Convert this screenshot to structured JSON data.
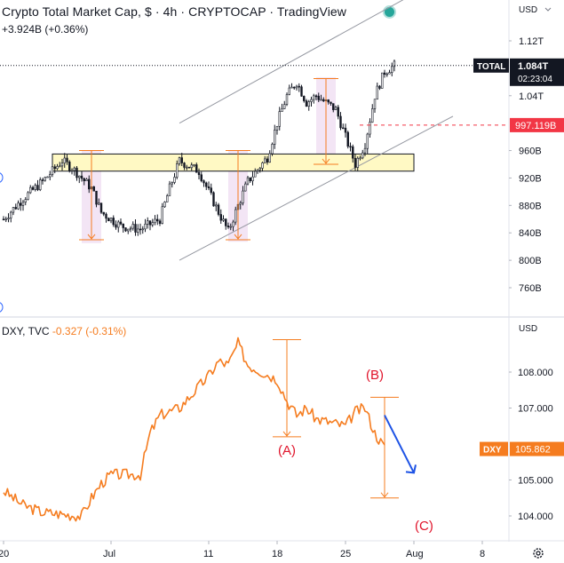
{
  "header": {
    "title": "Crypto Total Market Cap, $ · 4h · CRYPTOCAP · TradingView",
    "change": "+3.924B (+0.36%)"
  },
  "colors": {
    "candle": "#131722",
    "channel": "#9598a1",
    "zone_fill": "#fff9c4",
    "zone_border": "#131722",
    "highlight": "#f3e5f5",
    "arrow_orange": "#f57c1f",
    "dxy_line": "#f57c1f",
    "red_level": "#f23645",
    "wave_label": "#e0142b",
    "projection_arrow": "#1e53e5",
    "live": "#26a69a"
  },
  "icons": [
    "live-status-icon",
    "settings-gear-icon",
    "scale-dropdown-icon"
  ],
  "price_axis": {
    "unit_label": "USD",
    "ticks": [
      "1.12T",
      "1.04T",
      "960B",
      "920B",
      "880B",
      "840B",
      "800B",
      "760B"
    ],
    "tags": [
      {
        "label": "TOTAL",
        "value": "1.084T",
        "countdown": "02:23:04",
        "style": "dark"
      },
      {
        "label": "",
        "value": "997.119B",
        "countdown": "",
        "style": "red"
      }
    ]
  },
  "dxy_axis": {
    "unit_label": "USD",
    "ticks": [
      "108.000",
      "107.000",
      "105.000",
      "104.000"
    ],
    "tag": {
      "label": "DXY",
      "value": "105.862"
    }
  },
  "time_axis": {
    "ticks": [
      "20",
      "Jul",
      "11",
      "18",
      "25",
      "Aug",
      "8"
    ]
  },
  "dxy_header": {
    "symbol": "DXY, TVC",
    "change": "-0.327 (-0.31%)"
  },
  "chart_data": [
    {
      "type": "candlestick",
      "title": "Crypto Total Market Cap, $ · 4h · CRYPTOCAP · TradingView",
      "xlabel": "",
      "ylabel": "",
      "x_range": [
        "2022-06-20",
        "2022-08-08"
      ],
      "ylim": [
        730,
        1140
      ],
      "y_ticks": [
        1120,
        1040,
        960,
        920,
        880,
        840,
        800,
        760
      ],
      "close_path": [
        [
          "2022-06-20",
          860
        ],
        [
          "2022-06-22",
          890
        ],
        [
          "2022-06-24",
          915
        ],
        [
          "2022-06-26",
          945
        ],
        [
          "2022-06-27",
          935
        ],
        [
          "2022-06-29",
          905
        ],
        [
          "2022-06-30",
          870
        ],
        [
          "2022-07-02",
          850
        ],
        [
          "2022-07-04",
          845
        ],
        [
          "2022-07-06",
          860
        ],
        [
          "2022-07-07",
          905
        ],
        [
          "2022-07-08",
          945
        ],
        [
          "2022-07-10",
          930
        ],
        [
          "2022-07-11",
          900
        ],
        [
          "2022-07-12",
          870
        ],
        [
          "2022-07-13",
          842
        ],
        [
          "2022-07-14",
          880
        ],
        [
          "2022-07-15",
          915
        ],
        [
          "2022-07-17",
          950
        ],
        [
          "2022-07-18",
          1000
        ],
        [
          "2022-07-19",
          1040
        ],
        [
          "2022-07-20",
          1060
        ],
        [
          "2022-07-21",
          1030
        ],
        [
          "2022-07-22",
          1040
        ],
        [
          "2022-07-24",
          1020
        ],
        [
          "2022-07-25",
          980
        ],
        [
          "2022-07-26",
          940
        ],
        [
          "2022-07-27",
          970
        ],
        [
          "2022-07-28",
          1040
        ],
        [
          "2022-07-29",
          1075
        ],
        [
          "2022-07-30",
          1084
        ]
      ],
      "price_lines": [
        {
          "label": "TOTAL",
          "value": 1084
        },
        {
          "label": "",
          "value": 997.119
        }
      ],
      "zone": {
        "x0": "2022-06-25",
        "x1": "2022-08-01",
        "y0": 930,
        "y1": 955
      },
      "channel": {
        "upper": [
          [
            "2022-07-08",
            1000
          ],
          [
            "2022-08-05",
            1220
          ]
        ],
        "lower": [
          [
            "2022-07-08",
            800
          ],
          [
            "2022-08-05",
            1010
          ]
        ]
      },
      "highlights": [
        {
          "x0": "2022-06-28",
          "x1": "2022-06-30",
          "y0": 825,
          "y1": 960
        },
        {
          "x0": "2022-07-13",
          "x1": "2022-07-15",
          "y0": 827,
          "y1": 960
        },
        {
          "x0": "2022-07-22",
          "x1": "2022-07-24",
          "y0": 937,
          "y1": 1067
        }
      ],
      "measure_arrows": [
        {
          "x": "2022-06-29",
          "from": 960,
          "to": 830
        },
        {
          "x": "2022-07-14",
          "from": 960,
          "to": 830
        },
        {
          "x": "2022-07-23",
          "from": 1065,
          "to": 940
        }
      ]
    },
    {
      "type": "line",
      "title": "DXY, TVC",
      "xlabel": "",
      "ylabel": "",
      "ylim": [
        103.6,
        109.2
      ],
      "y_ticks": [
        108.0,
        107.0,
        105.0,
        104.0
      ],
      "series": [
        {
          "name": "DXY",
          "color": "#f57c1f",
          "points": [
            [
              "2022-06-20",
              104.7
            ],
            [
              "2022-06-22",
              104.3
            ],
            [
              "2022-06-24",
              104.1
            ],
            [
              "2022-06-26",
              104.05
            ],
            [
              "2022-06-28",
              104.0
            ],
            [
              "2022-06-29",
              104.5
            ],
            [
              "2022-06-30",
              104.9
            ],
            [
              "2022-07-01",
              105.15
            ],
            [
              "2022-07-04",
              105.15
            ],
            [
              "2022-07-05",
              106.3
            ],
            [
              "2022-07-06",
              106.8
            ],
            [
              "2022-07-08",
              107.0
            ],
            [
              "2022-07-11",
              107.9
            ],
            [
              "2022-07-12",
              108.3
            ],
            [
              "2022-07-13",
              108.2
            ],
            [
              "2022-07-14",
              108.8
            ],
            [
              "2022-07-15",
              108.2
            ],
            [
              "2022-07-18",
              107.8
            ],
            [
              "2022-07-19",
              107.2
            ],
            [
              "2022-07-20",
              106.8
            ],
            [
              "2022-07-21",
              107.0
            ],
            [
              "2022-07-22",
              106.7
            ],
            [
              "2022-07-25",
              106.5
            ],
            [
              "2022-07-26",
              106.9
            ],
            [
              "2022-07-27",
              107.0
            ],
            [
              "2022-07-28",
              106.3
            ],
            [
              "2022-07-29",
              105.9
            ]
          ]
        }
      ],
      "annotations": [
        {
          "label": "(A)",
          "x": "2022-07-19",
          "y": 105.7
        },
        {
          "label": "(B)",
          "x": "2022-07-28",
          "y": 107.8
        },
        {
          "label": "(C)",
          "x": "2022-08-02",
          "y": 103.6
        }
      ],
      "measure_lines": [
        {
          "x": "2022-07-19",
          "from": 108.9,
          "to": 106.2
        },
        {
          "x": "2022-07-29",
          "from": 107.3,
          "to": 104.5
        }
      ],
      "projection": {
        "from": [
          "2022-07-29",
          106.8
        ],
        "to": [
          "2022-08-01",
          105.2
        ]
      }
    }
  ]
}
